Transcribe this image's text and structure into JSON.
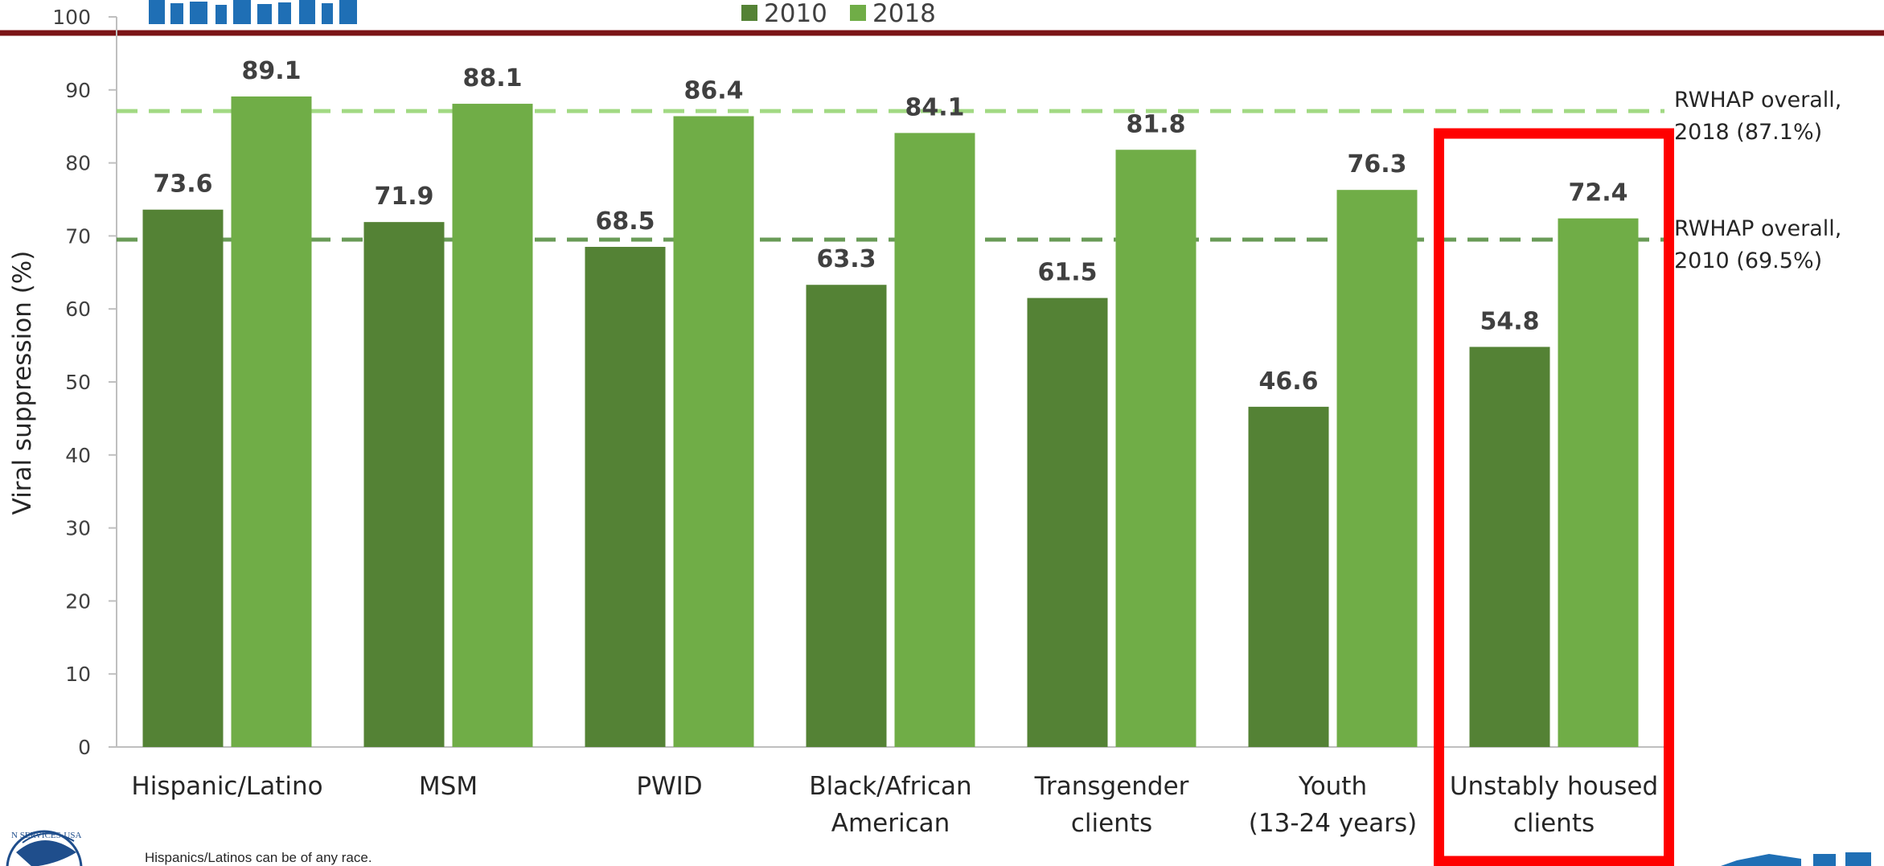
{
  "chart_data": {
    "type": "bar",
    "ylabel": "Viral suppression (%)",
    "ylim": [
      0,
      100
    ],
    "yticks": [
      0,
      10,
      20,
      30,
      40,
      50,
      60,
      70,
      80,
      90,
      100
    ],
    "categories": [
      [
        "Hispanic/Latino"
      ],
      [
        "MSM"
      ],
      [
        "PWID"
      ],
      [
        "Black/African",
        "American"
      ],
      [
        "Transgender",
        "clients"
      ],
      [
        "Youth",
        "(13-24 years)"
      ],
      [
        "Unstably housed",
        "clients"
      ]
    ],
    "series": [
      {
        "name": "2010",
        "color": "#548235",
        "values": [
          73.6,
          71.9,
          68.5,
          63.3,
          61.5,
          46.6,
          54.8
        ]
      },
      {
        "name": "2018",
        "color": "#70ad47",
        "values": [
          89.1,
          88.1,
          86.4,
          84.1,
          81.8,
          76.3,
          72.4
        ]
      }
    ],
    "legend_position": "top",
    "reference_lines": [
      {
        "value": 87.1,
        "color": "#92d36e",
        "label": [
          "RWHAP overall,",
          "2018 (87.1%)"
        ]
      },
      {
        "value": 69.5,
        "color": "#4f8a3a",
        "label": [
          "RWHAP overall,",
          "2010 (69.5%)"
        ]
      }
    ],
    "highlight_category_index": 6,
    "highlight_color": "#ff0000",
    "grid": false
  },
  "footnote": "Hispanics/Latinos can be of any race.",
  "header_rule_color": "#7b1416",
  "seal_text": "N SERVICES·USA"
}
